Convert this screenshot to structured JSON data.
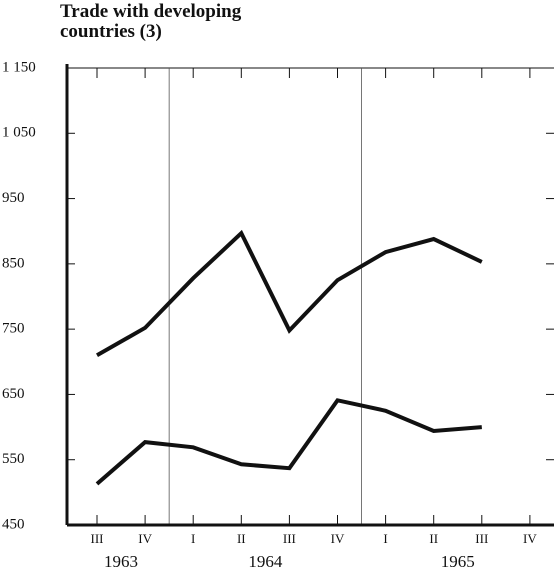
{
  "chart_data": {
    "type": "line",
    "title": "Trade with developing countries (3)",
    "categories": [
      "III",
      "IV",
      "I",
      "II",
      "III",
      "IV",
      "I",
      "II",
      "III",
      "IV"
    ],
    "groups": [
      {
        "label": "1963",
        "size": 2
      },
      {
        "label": "1964",
        "size": 4
      },
      {
        "label": "1965",
        "size": 4
      }
    ],
    "series": [
      {
        "color": "#111111",
        "values": [
          710,
          752,
          828,
          897,
          748,
          825,
          868,
          888,
          853,
          null
        ]
      },
      {
        "color": "#111111",
        "values": [
          513,
          577,
          569,
          543,
          537,
          641,
          625,
          594,
          600,
          null
        ]
      }
    ],
    "ylim": [
      450,
      1150
    ],
    "yticks": [
      {
        "value": 450,
        "label": "450"
      },
      {
        "value": 550,
        "label": "550"
      },
      {
        "value": 650,
        "label": "650"
      },
      {
        "value": 750,
        "label": "750"
      },
      {
        "value": 850,
        "label": "850"
      },
      {
        "value": 950,
        "label": "950"
      },
      {
        "value": 1050,
        "label": "1 050"
      },
      {
        "value": 1150,
        "label": "1 150"
      }
    ]
  }
}
